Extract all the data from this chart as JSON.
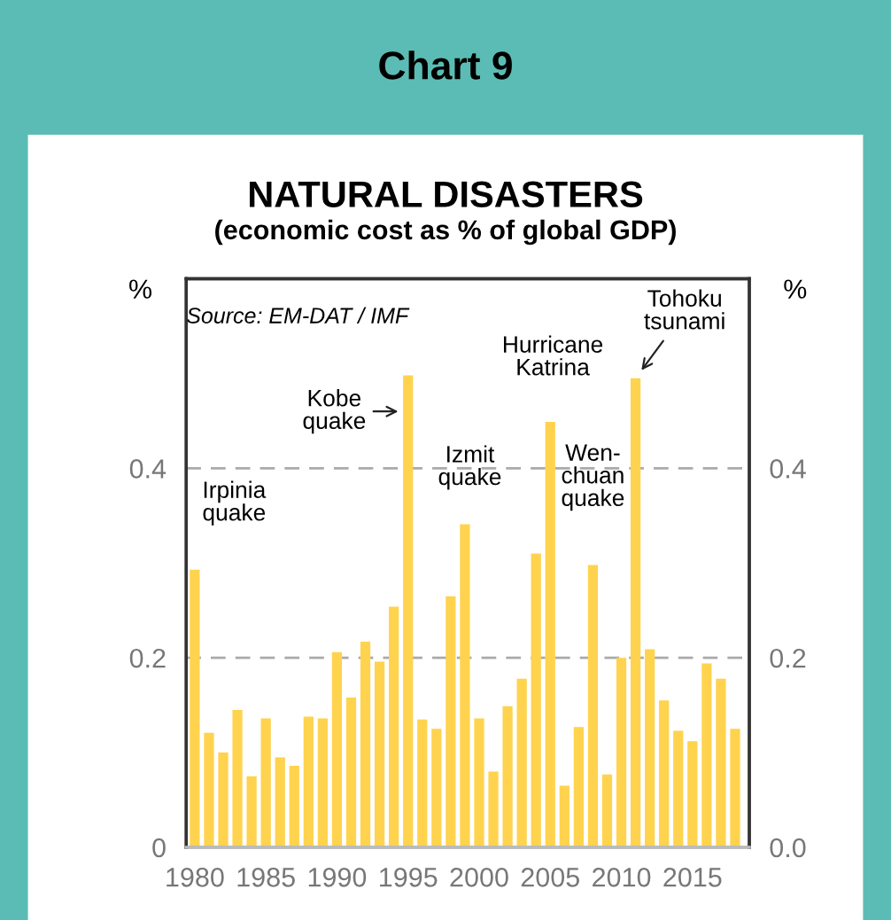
{
  "chart_data": {
    "type": "bar",
    "title": "NATURAL DISASTERS",
    "subtitle": "(economic cost as % of global GDP)",
    "ylabel": "%",
    "y2label": "%",
    "x": [
      1980,
      1981,
      1982,
      1983,
      1984,
      1985,
      1986,
      1987,
      1988,
      1989,
      1990,
      1991,
      1992,
      1993,
      1994,
      1995,
      1996,
      1997,
      1998,
      1999,
      2000,
      2001,
      2002,
      2003,
      2004,
      2005,
      2006,
      2007,
      2008,
      2009,
      2010,
      2011,
      2012,
      2013,
      2014,
      2015,
      2016,
      2017,
      2018
    ],
    "values": [
      0.293,
      0.121,
      0.1,
      0.145,
      0.075,
      0.136,
      0.095,
      0.086,
      0.138,
      0.136,
      0.206,
      0.158,
      0.217,
      0.196,
      0.254,
      0.498,
      0.135,
      0.125,
      0.265,
      0.341,
      0.136,
      0.08,
      0.149,
      0.178,
      0.31,
      0.449,
      0.065,
      0.127,
      0.298,
      0.077,
      0.2,
      0.495,
      0.209,
      0.155,
      0.123,
      0.112,
      0.194,
      0.178,
      0.125
    ],
    "color": "#ffd34e",
    "xlim": [
      1979.4,
      2019
    ],
    "xticks": [
      1980,
      1985,
      1990,
      1995,
      2000,
      2005,
      2010,
      2015
    ],
    "ylim": [
      0,
      0.6
    ],
    "yticks": [
      0,
      0.2,
      0.4
    ],
    "y2lim": [
      0,
      0.6
    ],
    "y2ticks": [
      {
        "value": 0,
        "label": "0.0"
      },
      0.2,
      0.4
    ],
    "grid": "y",
    "line_style": "dashed",
    "annotations": [
      "Chart 9",
      "Source: EM-DAT / IMF",
      {
        "text": "Irpinia\nquake",
        "x": 1980,
        "y": 0.293
      },
      {
        "text": "Kobe\nquake",
        "x": 1995,
        "y": 0.46
      },
      {
        "text": "Izmit\nquake",
        "x": 1999,
        "y": 0.341
      },
      {
        "text": "Hurricane\nKatrina",
        "x": 2005,
        "y": 0.449
      },
      {
        "text": "Wen-\nchuan\nquake",
        "x": 2008,
        "y": 0.298
      },
      {
        "text": "Tohoku\ntsunami",
        "x": 2011,
        "y": 0.495
      }
    ]
  }
}
